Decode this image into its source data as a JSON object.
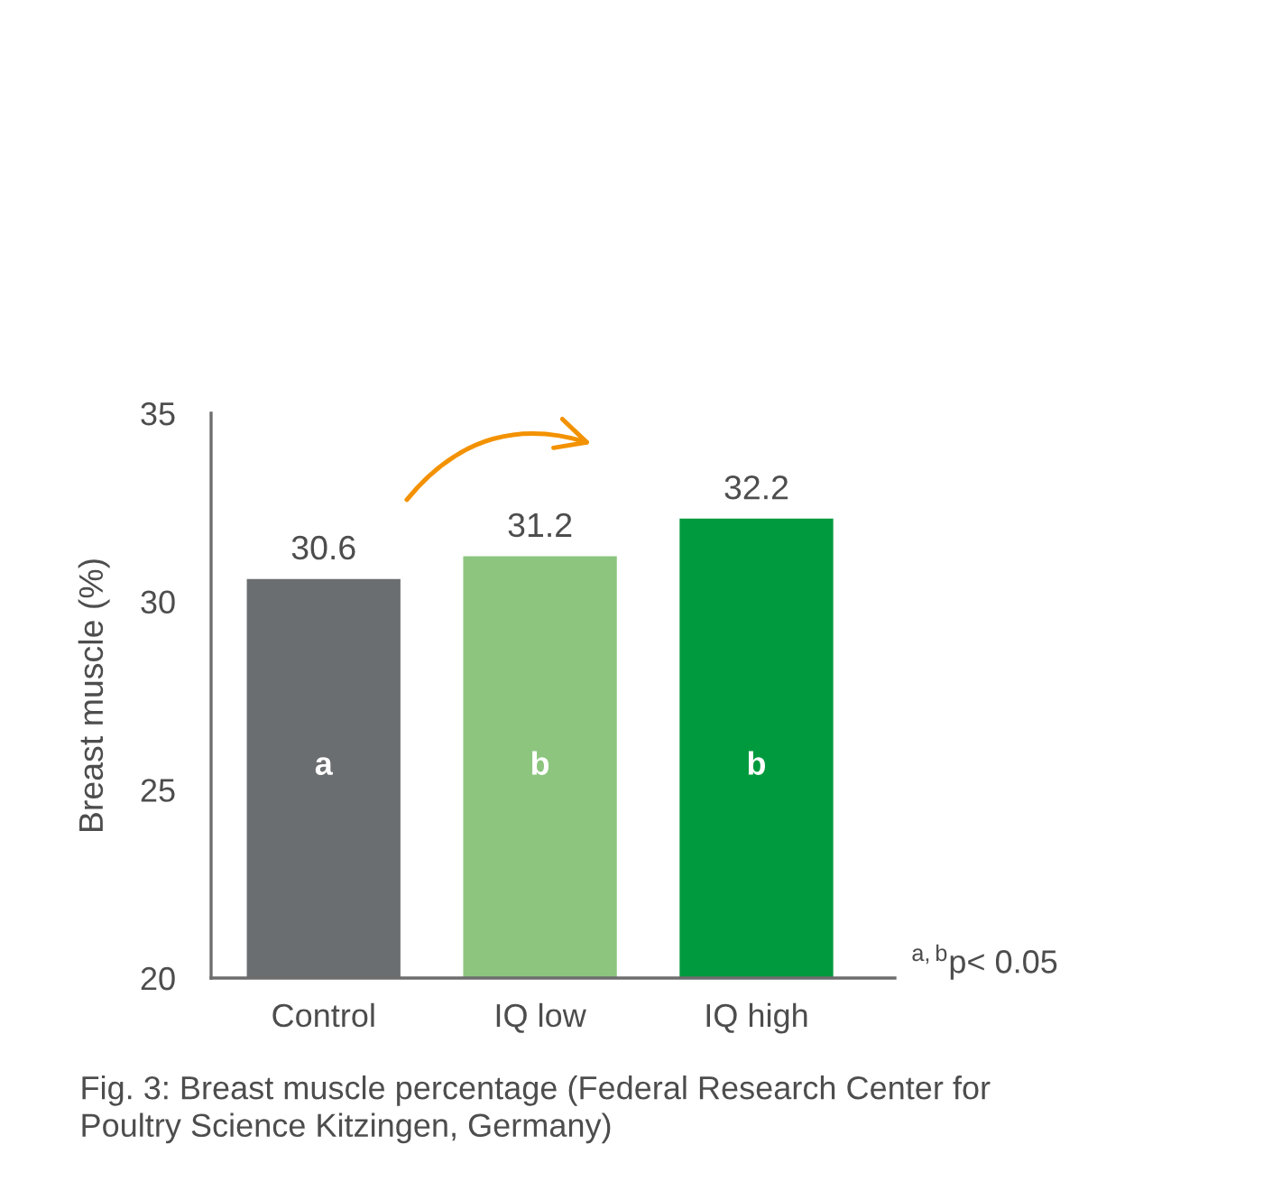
{
  "chart_data": {
    "type": "bar",
    "ylabel": "Breast muscle (%)",
    "categories": [
      "Control",
      "IQ low",
      "IQ high"
    ],
    "values": [
      30.6,
      31.2,
      32.2
    ],
    "colors": [
      "#6b6e70",
      "#8dc57f",
      "#009a3e"
    ],
    "ylim": [
      20,
      35
    ],
    "yticks": [
      20,
      25,
      30,
      35
    ],
    "data_labels": true,
    "annotations": [
      "a",
      "b",
      "b",
      "$^{a,b}$p< 0.05",
      "Fig. 3: Breast muscle percentage (Federal Research Center for Poultry Science Kitzingen, Germany)"
    ]
  }
}
